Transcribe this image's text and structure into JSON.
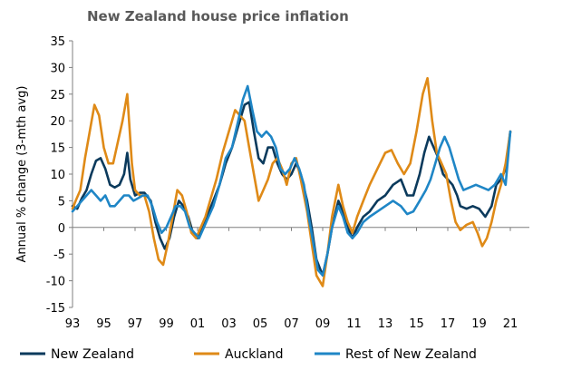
{
  "chart_data": {
    "type": "line",
    "title": "New Zealand house price inflation",
    "xlabel": "",
    "ylabel": "Annual % change (3-mth avg)",
    "xlim": [
      1993,
      2021.5
    ],
    "ylim": [
      -15,
      35
    ],
    "x_ticks": [
      1993,
      1995,
      1997,
      1999,
      2001,
      2003,
      2005,
      2007,
      2009,
      2011,
      2013,
      2015,
      2017,
      2019,
      2021
    ],
    "x_tick_labels": [
      "93",
      "95",
      "97",
      "99",
      "01",
      "03",
      "05",
      "07",
      "09",
      "11",
      "13",
      "15",
      "17",
      "19",
      "21"
    ],
    "y_ticks": [
      -15,
      -10,
      -5,
      0,
      5,
      10,
      15,
      20,
      25,
      30,
      35
    ],
    "y_tick_labels": [
      "-15",
      "-10",
      "-5",
      "0",
      "5",
      "10",
      "15",
      "20",
      "25",
      "30",
      "35"
    ],
    "grid": false,
    "legend_position": "bottom",
    "series": [
      {
        "name": "New Zealand",
        "color": "#0b3a5c",
        "points": [
          [
            1993.0,
            4
          ],
          [
            1993.3,
            3.5
          ],
          [
            1993.6,
            5.5
          ],
          [
            1993.9,
            7
          ],
          [
            1994.2,
            10
          ],
          [
            1994.5,
            12.5
          ],
          [
            1994.8,
            13
          ],
          [
            1995.1,
            11
          ],
          [
            1995.4,
            8
          ],
          [
            1995.7,
            7.5
          ],
          [
            1996.0,
            8
          ],
          [
            1996.3,
            10
          ],
          [
            1996.5,
            14
          ],
          [
            1996.7,
            9
          ],
          [
            1997.0,
            6
          ],
          [
            1997.3,
            6.5
          ],
          [
            1997.6,
            6.5
          ],
          [
            1998.0,
            5
          ],
          [
            1998.3,
            1
          ],
          [
            1998.6,
            -2
          ],
          [
            1998.9,
            -4
          ],
          [
            1999.2,
            -2
          ],
          [
            1999.5,
            2
          ],
          [
            1999.8,
            5
          ],
          [
            2000.1,
            4
          ],
          [
            2000.4,
            2
          ],
          [
            2000.7,
            -1
          ],
          [
            2001.0,
            -2
          ],
          [
            2001.3,
            0
          ],
          [
            2001.6,
            2
          ],
          [
            2002.0,
            5
          ],
          [
            2002.4,
            8
          ],
          [
            2002.8,
            12
          ],
          [
            2003.2,
            15
          ],
          [
            2003.6,
            19
          ],
          [
            2004.0,
            23
          ],
          [
            2004.3,
            23.5
          ],
          [
            2004.6,
            18
          ],
          [
            2004.9,
            13
          ],
          [
            2005.2,
            12
          ],
          [
            2005.5,
            15
          ],
          [
            2005.8,
            15
          ],
          [
            2006.1,
            12
          ],
          [
            2006.4,
            10
          ],
          [
            2006.7,
            9
          ],
          [
            2007.0,
            10
          ],
          [
            2007.3,
            12
          ],
          [
            2007.6,
            10
          ],
          [
            2008.0,
            5
          ],
          [
            2008.3,
            0
          ],
          [
            2008.6,
            -6
          ],
          [
            2009.0,
            -9
          ],
          [
            2009.3,
            -5
          ],
          [
            2009.6,
            0
          ],
          [
            2010.0,
            5
          ],
          [
            2010.3,
            3
          ],
          [
            2010.6,
            0
          ],
          [
            2010.9,
            -2
          ],
          [
            2011.2,
            0
          ],
          [
            2011.6,
            2
          ],
          [
            2012.0,
            3
          ],
          [
            2012.5,
            5
          ],
          [
            2013.0,
            6
          ],
          [
            2013.5,
            8
          ],
          [
            2014.0,
            9
          ],
          [
            2014.4,
            6
          ],
          [
            2014.8,
            6
          ],
          [
            2015.2,
            10
          ],
          [
            2015.5,
            14
          ],
          [
            2015.8,
            17
          ],
          [
            2016.1,
            15
          ],
          [
            2016.4,
            13
          ],
          [
            2016.7,
            10
          ],
          [
            2017.0,
            9
          ],
          [
            2017.3,
            8
          ],
          [
            2017.6,
            6
          ],
          [
            2017.8,
            4
          ],
          [
            2018.2,
            3.5
          ],
          [
            2018.6,
            4
          ],
          [
            2019.0,
            3.5
          ],
          [
            2019.4,
            2
          ],
          [
            2019.8,
            4
          ],
          [
            2020.1,
            8
          ],
          [
            2020.4,
            9
          ],
          [
            2020.7,
            11
          ],
          [
            2021.0,
            18
          ]
        ]
      },
      {
        "name": "Auckland",
        "color": "#df8a17",
        "points": [
          [
            1993.0,
            3.5
          ],
          [
            1993.2,
            5
          ],
          [
            1993.5,
            7
          ],
          [
            1993.8,
            13
          ],
          [
            1994.1,
            18
          ],
          [
            1994.4,
            23
          ],
          [
            1994.7,
            21
          ],
          [
            1995.0,
            15
          ],
          [
            1995.3,
            12
          ],
          [
            1995.6,
            12
          ],
          [
            1995.9,
            16
          ],
          [
            1996.2,
            20
          ],
          [
            1996.5,
            25
          ],
          [
            1996.8,
            12
          ],
          [
            1997.0,
            7
          ],
          [
            1997.3,
            6
          ],
          [
            1997.6,
            6
          ],
          [
            1997.9,
            3
          ],
          [
            1998.2,
            -2
          ],
          [
            1998.5,
            -6
          ],
          [
            1998.8,
            -7
          ],
          [
            1999.1,
            -3
          ],
          [
            1999.4,
            2
          ],
          [
            1999.7,
            7
          ],
          [
            2000.0,
            6
          ],
          [
            2000.3,
            3
          ],
          [
            2000.6,
            -1
          ],
          [
            2000.9,
            -2
          ],
          [
            2001.2,
            0
          ],
          [
            2001.5,
            2
          ],
          [
            2001.8,
            5
          ],
          [
            2002.2,
            9
          ],
          [
            2002.6,
            14
          ],
          [
            2003.0,
            18
          ],
          [
            2003.4,
            22
          ],
          [
            2003.7,
            21
          ],
          [
            2004.0,
            20
          ],
          [
            2004.3,
            15
          ],
          [
            2004.6,
            10
          ],
          [
            2004.9,
            5
          ],
          [
            2005.2,
            7
          ],
          [
            2005.5,
            9
          ],
          [
            2005.8,
            12
          ],
          [
            2006.1,
            13
          ],
          [
            2006.4,
            11
          ],
          [
            2006.7,
            8
          ],
          [
            2007.0,
            12
          ],
          [
            2007.3,
            13
          ],
          [
            2007.6,
            9
          ],
          [
            2008.0,
            3
          ],
          [
            2008.3,
            -3
          ],
          [
            2008.6,
            -9
          ],
          [
            2009.0,
            -11
          ],
          [
            2009.3,
            -5
          ],
          [
            2009.6,
            2
          ],
          [
            2010.0,
            8
          ],
          [
            2010.3,
            4
          ],
          [
            2010.6,
            1
          ],
          [
            2010.9,
            -1
          ],
          [
            2011.2,
            2
          ],
          [
            2011.6,
            5
          ],
          [
            2012.0,
            8
          ],
          [
            2012.5,
            11
          ],
          [
            2013.0,
            14
          ],
          [
            2013.4,
            14.5
          ],
          [
            2013.8,
            12
          ],
          [
            2014.2,
            10
          ],
          [
            2014.6,
            12
          ],
          [
            2015.0,
            18
          ],
          [
            2015.4,
            25
          ],
          [
            2015.7,
            28
          ],
          [
            2016.0,
            20
          ],
          [
            2016.3,
            14
          ],
          [
            2016.6,
            12
          ],
          [
            2016.9,
            10
          ],
          [
            2017.2,
            5
          ],
          [
            2017.5,
            1
          ],
          [
            2017.8,
            -0.5
          ],
          [
            2018.2,
            0.5
          ],
          [
            2018.6,
            1
          ],
          [
            2018.9,
            -1
          ],
          [
            2019.2,
            -3.5
          ],
          [
            2019.5,
            -2
          ],
          [
            2019.8,
            1
          ],
          [
            2020.1,
            5
          ],
          [
            2020.4,
            8
          ],
          [
            2020.7,
            12
          ],
          [
            2021.0,
            18
          ]
        ]
      },
      {
        "name": "Rest of New Zealand",
        "color": "#1f86c6",
        "points": [
          [
            1993.0,
            3
          ],
          [
            1993.3,
            4
          ],
          [
            1993.6,
            5
          ],
          [
            1993.9,
            6
          ],
          [
            1994.2,
            7
          ],
          [
            1994.5,
            6
          ],
          [
            1994.8,
            5
          ],
          [
            1995.1,
            6
          ],
          [
            1995.4,
            4
          ],
          [
            1995.7,
            4
          ],
          [
            1996.0,
            5
          ],
          [
            1996.3,
            6
          ],
          [
            1996.6,
            6
          ],
          [
            1996.9,
            5
          ],
          [
            1997.2,
            5.5
          ],
          [
            1997.5,
            6
          ],
          [
            1997.8,
            6
          ],
          [
            1998.1,
            4
          ],
          [
            1998.4,
            1
          ],
          [
            1998.7,
            -1
          ],
          [
            1999.0,
            0
          ],
          [
            1999.3,
            2
          ],
          [
            1999.6,
            4
          ],
          [
            1999.9,
            4
          ],
          [
            2000.2,
            3
          ],
          [
            2000.5,
            0
          ],
          [
            2000.8,
            -1
          ],
          [
            2001.1,
            -2
          ],
          [
            2001.4,
            0
          ],
          [
            2001.7,
            2
          ],
          [
            2002.0,
            4
          ],
          [
            2002.4,
            8
          ],
          [
            2002.8,
            13
          ],
          [
            2003.2,
            15
          ],
          [
            2003.6,
            20
          ],
          [
            2003.9,
            24
          ],
          [
            2004.2,
            26.5
          ],
          [
            2004.5,
            22
          ],
          [
            2004.8,
            18
          ],
          [
            2005.1,
            17
          ],
          [
            2005.4,
            18
          ],
          [
            2005.7,
            17
          ],
          [
            2006.0,
            15
          ],
          [
            2006.3,
            11
          ],
          [
            2006.6,
            10
          ],
          [
            2006.9,
            11
          ],
          [
            2007.2,
            13
          ],
          [
            2007.5,
            11
          ],
          [
            2007.8,
            8
          ],
          [
            2008.1,
            2
          ],
          [
            2008.4,
            -3
          ],
          [
            2008.7,
            -8
          ],
          [
            2009.0,
            -9
          ],
          [
            2009.3,
            -5
          ],
          [
            2009.6,
            0
          ],
          [
            2010.0,
            4
          ],
          [
            2010.3,
            2
          ],
          [
            2010.6,
            -1
          ],
          [
            2010.9,
            -2
          ],
          [
            2011.2,
            -1
          ],
          [
            2011.6,
            1
          ],
          [
            2012.0,
            2
          ],
          [
            2012.5,
            3
          ],
          [
            2013.0,
            4
          ],
          [
            2013.5,
            5
          ],
          [
            2014.0,
            4
          ],
          [
            2014.4,
            2.5
          ],
          [
            2014.8,
            3
          ],
          [
            2015.2,
            5
          ],
          [
            2015.6,
            7
          ],
          [
            2015.9,
            9
          ],
          [
            2016.2,
            12
          ],
          [
            2016.5,
            15
          ],
          [
            2016.8,
            17
          ],
          [
            2017.1,
            15
          ],
          [
            2017.4,
            12
          ],
          [
            2017.7,
            9
          ],
          [
            2018.0,
            7
          ],
          [
            2018.4,
            7.5
          ],
          [
            2018.8,
            8
          ],
          [
            2019.2,
            7.5
          ],
          [
            2019.6,
            7
          ],
          [
            2020.0,
            8
          ],
          [
            2020.4,
            10
          ],
          [
            2020.7,
            8
          ],
          [
            2021.0,
            18
          ]
        ]
      }
    ]
  }
}
